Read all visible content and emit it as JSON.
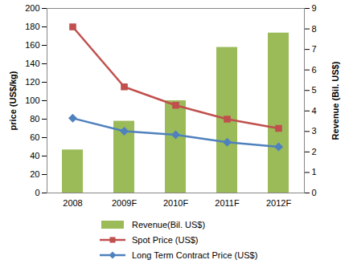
{
  "chart_data": {
    "type": "bar",
    "categories": [
      "2008",
      "2009F",
      "2010F",
      "2011F",
      "2012F"
    ],
    "series": [
      {
        "name": "Revenue(Bil. US$)",
        "type": "bar",
        "axis": "y2",
        "color": "#9bbb59",
        "values": [
          2.1,
          3.5,
          4.5,
          7.1,
          7.8
        ]
      },
      {
        "name": "Spot Price (US$)",
        "type": "line",
        "color": "#c0504d",
        "marker": "square",
        "values": [
          180,
          115,
          95,
          80,
          70
        ]
      },
      {
        "name": "Long Term Contract Price (US$)",
        "type": "line",
        "color": "#4f81bd",
        "marker": "diamond",
        "values": [
          81,
          67,
          63,
          55,
          50
        ]
      }
    ],
    "ylabel": "price (US$/kg)",
    "y2label": "Revenue (Bil. US$)",
    "ylim": [
      0,
      200
    ],
    "yticks": [
      0,
      20,
      40,
      60,
      80,
      100,
      120,
      140,
      160,
      180,
      200
    ],
    "y2lim": [
      0,
      9
    ],
    "y2ticks": [
      0,
      1,
      2,
      3,
      4,
      5,
      6,
      7,
      8,
      9
    ],
    "grid": false,
    "legend": "bottom"
  }
}
